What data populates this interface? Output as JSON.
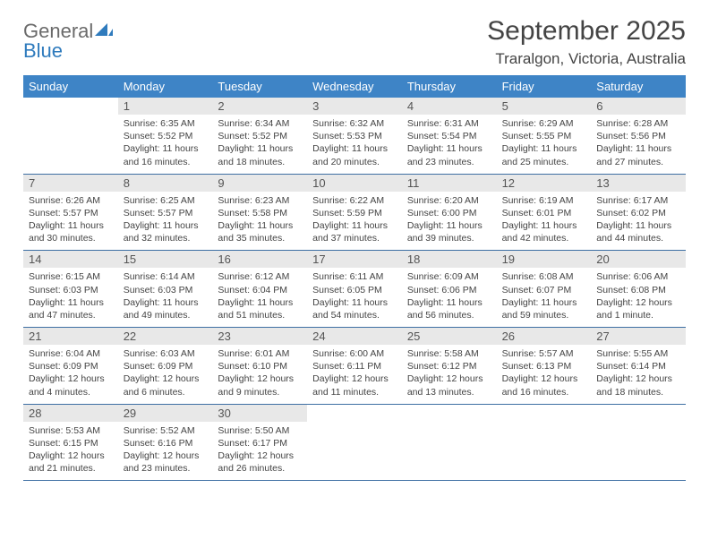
{
  "logo": {
    "textTop": "General",
    "textBottom": "Blue",
    "sailColor": "#2f7bbd"
  },
  "title": "September 2025",
  "location": "Traralgon, Victoria, Australia",
  "headerBg": "#3e84c6",
  "weekBorder": "#3e6fa3",
  "dayNumBg": "#e8e8e8",
  "dayNames": [
    "Sunday",
    "Monday",
    "Tuesday",
    "Wednesday",
    "Thursday",
    "Friday",
    "Saturday"
  ],
  "weeks": [
    [
      null,
      {
        "n": "1",
        "sr": "6:35 AM",
        "ss": "5:52 PM",
        "dl": "11 hours and 16 minutes."
      },
      {
        "n": "2",
        "sr": "6:34 AM",
        "ss": "5:52 PM",
        "dl": "11 hours and 18 minutes."
      },
      {
        "n": "3",
        "sr": "6:32 AM",
        "ss": "5:53 PM",
        "dl": "11 hours and 20 minutes."
      },
      {
        "n": "4",
        "sr": "6:31 AM",
        "ss": "5:54 PM",
        "dl": "11 hours and 23 minutes."
      },
      {
        "n": "5",
        "sr": "6:29 AM",
        "ss": "5:55 PM",
        "dl": "11 hours and 25 minutes."
      },
      {
        "n": "6",
        "sr": "6:28 AM",
        "ss": "5:56 PM",
        "dl": "11 hours and 27 minutes."
      }
    ],
    [
      {
        "n": "7",
        "sr": "6:26 AM",
        "ss": "5:57 PM",
        "dl": "11 hours and 30 minutes."
      },
      {
        "n": "8",
        "sr": "6:25 AM",
        "ss": "5:57 PM",
        "dl": "11 hours and 32 minutes."
      },
      {
        "n": "9",
        "sr": "6:23 AM",
        "ss": "5:58 PM",
        "dl": "11 hours and 35 minutes."
      },
      {
        "n": "10",
        "sr": "6:22 AM",
        "ss": "5:59 PM",
        "dl": "11 hours and 37 minutes."
      },
      {
        "n": "11",
        "sr": "6:20 AM",
        "ss": "6:00 PM",
        "dl": "11 hours and 39 minutes."
      },
      {
        "n": "12",
        "sr": "6:19 AM",
        "ss": "6:01 PM",
        "dl": "11 hours and 42 minutes."
      },
      {
        "n": "13",
        "sr": "6:17 AM",
        "ss": "6:02 PM",
        "dl": "11 hours and 44 minutes."
      }
    ],
    [
      {
        "n": "14",
        "sr": "6:15 AM",
        "ss": "6:03 PM",
        "dl": "11 hours and 47 minutes."
      },
      {
        "n": "15",
        "sr": "6:14 AM",
        "ss": "6:03 PM",
        "dl": "11 hours and 49 minutes."
      },
      {
        "n": "16",
        "sr": "6:12 AM",
        "ss": "6:04 PM",
        "dl": "11 hours and 51 minutes."
      },
      {
        "n": "17",
        "sr": "6:11 AM",
        "ss": "6:05 PM",
        "dl": "11 hours and 54 minutes."
      },
      {
        "n": "18",
        "sr": "6:09 AM",
        "ss": "6:06 PM",
        "dl": "11 hours and 56 minutes."
      },
      {
        "n": "19",
        "sr": "6:08 AM",
        "ss": "6:07 PM",
        "dl": "11 hours and 59 minutes."
      },
      {
        "n": "20",
        "sr": "6:06 AM",
        "ss": "6:08 PM",
        "dl": "12 hours and 1 minute."
      }
    ],
    [
      {
        "n": "21",
        "sr": "6:04 AM",
        "ss": "6:09 PM",
        "dl": "12 hours and 4 minutes."
      },
      {
        "n": "22",
        "sr": "6:03 AM",
        "ss": "6:09 PM",
        "dl": "12 hours and 6 minutes."
      },
      {
        "n": "23",
        "sr": "6:01 AM",
        "ss": "6:10 PM",
        "dl": "12 hours and 9 minutes."
      },
      {
        "n": "24",
        "sr": "6:00 AM",
        "ss": "6:11 PM",
        "dl": "12 hours and 11 minutes."
      },
      {
        "n": "25",
        "sr": "5:58 AM",
        "ss": "6:12 PM",
        "dl": "12 hours and 13 minutes."
      },
      {
        "n": "26",
        "sr": "5:57 AM",
        "ss": "6:13 PM",
        "dl": "12 hours and 16 minutes."
      },
      {
        "n": "27",
        "sr": "5:55 AM",
        "ss": "6:14 PM",
        "dl": "12 hours and 18 minutes."
      }
    ],
    [
      {
        "n": "28",
        "sr": "5:53 AM",
        "ss": "6:15 PM",
        "dl": "12 hours and 21 minutes."
      },
      {
        "n": "29",
        "sr": "5:52 AM",
        "ss": "6:16 PM",
        "dl": "12 hours and 23 minutes."
      },
      {
        "n": "30",
        "sr": "5:50 AM",
        "ss": "6:17 PM",
        "dl": "12 hours and 26 minutes."
      },
      null,
      null,
      null,
      null
    ]
  ],
  "labels": {
    "sunrise": "Sunrise:",
    "sunset": "Sunset:",
    "daylight": "Daylight:"
  }
}
